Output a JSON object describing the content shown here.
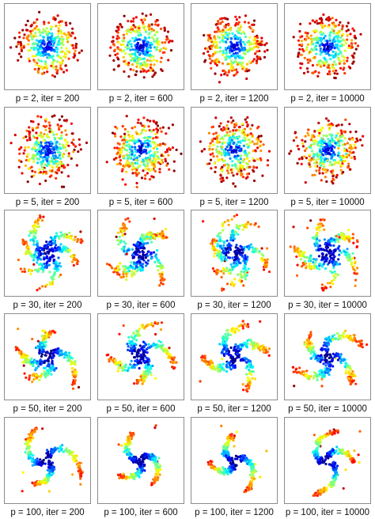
{
  "chart_data": {
    "type": "scatter",
    "colormap": "jet",
    "panels": [
      {
        "label": "p = 2, iter = 200",
        "perplexity": 2,
        "iterations": 200
      },
      {
        "label": "p = 2, iter = 600",
        "perplexity": 2,
        "iterations": 600
      },
      {
        "label": "p = 2, iter = 1200",
        "perplexity": 2,
        "iterations": 1200
      },
      {
        "label": "p = 2, iter = 10000",
        "perplexity": 2,
        "iterations": 10000
      },
      {
        "label": "p = 5, iter = 200",
        "perplexity": 5,
        "iterations": 200
      },
      {
        "label": "p = 5, iter = 600",
        "perplexity": 5,
        "iterations": 600
      },
      {
        "label": "p = 5, iter = 1200",
        "perplexity": 5,
        "iterations": 1200
      },
      {
        "label": "p = 5, iter = 10000",
        "perplexity": 5,
        "iterations": 10000
      },
      {
        "label": "p = 30, iter = 200",
        "perplexity": 30,
        "iterations": 200
      },
      {
        "label": "p = 30, iter = 600",
        "perplexity": 30,
        "iterations": 600
      },
      {
        "label": "p = 30, iter = 1200",
        "perplexity": 30,
        "iterations": 1200
      },
      {
        "label": "p = 30, iter = 10000",
        "perplexity": 30,
        "iterations": 10000
      },
      {
        "label": "p = 50, iter = 200",
        "perplexity": 50,
        "iterations": 200
      },
      {
        "label": "p = 50, iter = 600",
        "perplexity": 50,
        "iterations": 600
      },
      {
        "label": "p = 50, iter = 1200",
        "perplexity": 50,
        "iterations": 1200
      },
      {
        "label": "p = 50, iter = 10000",
        "perplexity": 50,
        "iterations": 10000
      },
      {
        "label": "p = 100, iter = 200",
        "perplexity": 100,
        "iterations": 200
      },
      {
        "label": "p = 100, iter = 600",
        "perplexity": 100,
        "iterations": 600
      },
      {
        "label": "p = 100, iter = 1200",
        "perplexity": 100,
        "iterations": 1200
      },
      {
        "label": "p = 100, iter = 10000",
        "perplexity": 100,
        "iterations": 10000
      }
    ]
  }
}
